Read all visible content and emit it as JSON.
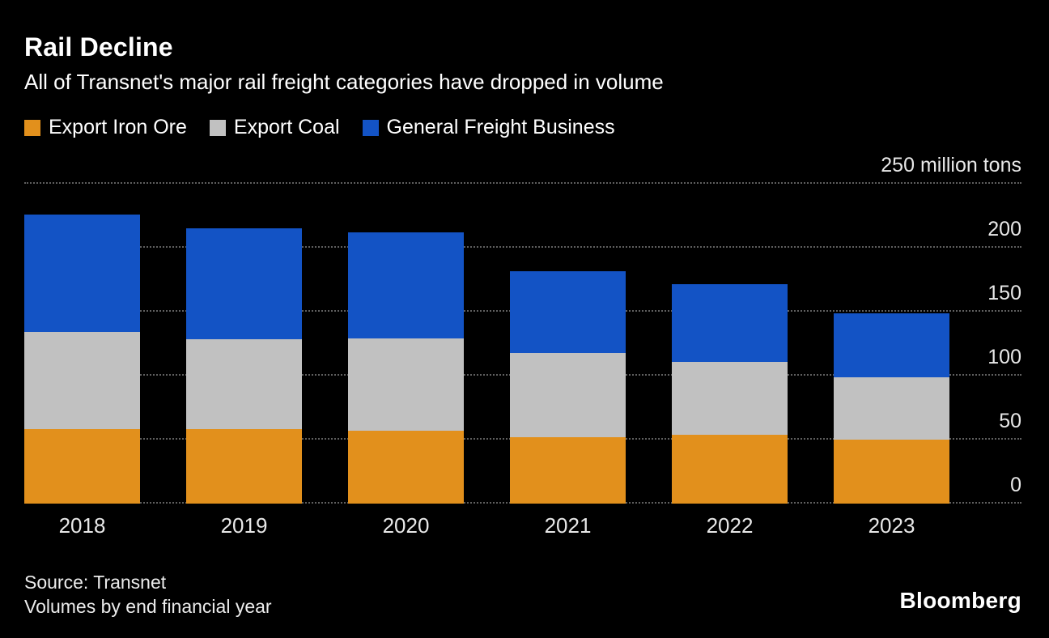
{
  "header": {
    "title": "Rail Decline",
    "subtitle": "All of Transnet's major rail freight categories have dropped in volume"
  },
  "chart_data": {
    "type": "bar",
    "stacked": true,
    "title": "Rail Decline",
    "subtitle": "All of Transnet's major rail freight categories have dropped in volume",
    "categories": [
      "2018",
      "2019",
      "2020",
      "2021",
      "2022",
      "2023"
    ],
    "series": [
      {
        "name": "Export Iron Ore",
        "color": "#E2901C",
        "values": [
          58,
          58,
          57,
          52,
          54,
          50
        ]
      },
      {
        "name": "Export Coal",
        "color": "#C1C1C1",
        "values": [
          76,
          70,
          72,
          66,
          57,
          49
        ]
      },
      {
        "name": "General Freight Business",
        "color": "#1353C5",
        "values": [
          92,
          87,
          83,
          64,
          61,
          50
        ]
      }
    ],
    "totals": [
      226,
      215,
      212,
      182,
      172,
      149
    ],
    "ylim": [
      0,
      250
    ],
    "yticks": [
      {
        "value": 0,
        "label": "0"
      },
      {
        "value": 50,
        "label": "50"
      },
      {
        "value": 100,
        "label": "100"
      },
      {
        "value": 150,
        "label": "150"
      },
      {
        "value": 200,
        "label": "200"
      },
      {
        "value": 250,
        "label": "250 million tons"
      }
    ],
    "unit": "million tons",
    "grid": "dotted-horizontal",
    "legend_position": "top",
    "background": "#000000"
  },
  "footer": {
    "source": "Source: Transnet",
    "note": "Volumes by end financial year",
    "brand": "Bloomberg"
  }
}
